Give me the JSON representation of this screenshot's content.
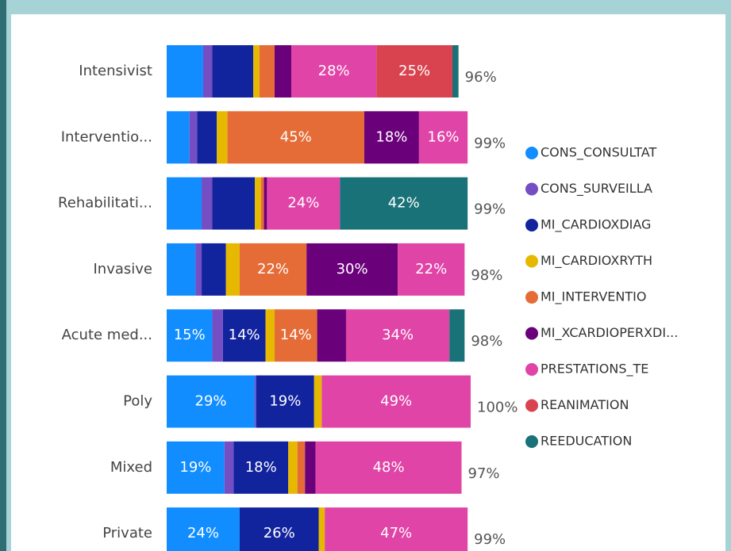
{
  "chart_data": {
    "type": "stacked_bar_horizontal",
    "categories": [
      "Intensivist",
      "Interventio...",
      "Rehabilitati...",
      "Invasive",
      "Acute med...",
      "Poly",
      "Mixed",
      "Private"
    ],
    "series": [
      {
        "name": "CONS_CONSULTAT",
        "color": "#118DFF",
        "values": [
          12,
          7.5,
          11.5,
          9.5,
          15,
          29,
          19,
          24
        ],
        "value_labels": [
          null,
          null,
          null,
          null,
          "15%",
          "29%",
          "19%",
          "24%"
        ]
      },
      {
        "name": "CONS_SURVEILLA",
        "color": "#744EC2",
        "values": [
          3,
          2.5,
          3.5,
          2,
          3.5,
          0.5,
          3,
          0
        ],
        "value_labels": [
          null,
          null,
          null,
          null,
          null,
          null,
          null,
          null
        ]
      },
      {
        "name": "MI_CARDIOXDIAG",
        "color": "#12239E",
        "values": [
          13.5,
          6.5,
          14,
          8,
          14,
          19,
          18,
          26
        ],
        "value_labels": [
          null,
          null,
          null,
          null,
          "14%",
          "19%",
          "18%",
          "26%"
        ]
      },
      {
        "name": "MI_CARDIOXRYTH",
        "color": "#E6B800",
        "values": [
          2,
          3.5,
          2,
          4.5,
          3,
          2.5,
          3,
          2
        ],
        "value_labels": [
          null,
          null,
          null,
          null,
          null,
          null,
          null,
          null
        ]
      },
      {
        "name": "MI_INTERVENTIO",
        "color": "#E66C37",
        "values": [
          5,
          45,
          1,
          22,
          14,
          0,
          2.5,
          0
        ],
        "value_labels": [
          null,
          "45%",
          null,
          "22%",
          "14%",
          null,
          null,
          null
        ]
      },
      {
        "name": "MI_XCARDIOPERXDI...",
        "color": "#6B007B",
        "values": [
          5.5,
          18,
          1,
          30,
          9.5,
          0,
          3.5,
          0
        ],
        "value_labels": [
          null,
          "18%",
          null,
          "30%",
          null,
          null,
          null,
          null
        ]
      },
      {
        "name": "PRESTATIONS_TE",
        "color": "#E044A7",
        "values": [
          28,
          16,
          24,
          22,
          34,
          49,
          48,
          47
        ],
        "value_labels": [
          "28%",
          "16%",
          "24%",
          "22%",
          "34%",
          "49%",
          "48%",
          "47%"
        ]
      },
      {
        "name": "REANIMATION",
        "color": "#D9434F",
        "values": [
          25,
          0,
          0,
          0,
          0,
          0,
          0,
          0
        ],
        "value_labels": [
          "25%",
          null,
          null,
          null,
          null,
          null,
          null,
          null
        ]
      },
      {
        "name": "REEDUCATION",
        "color": "#197278",
        "values": [
          2,
          0,
          42,
          0,
          5,
          0,
          0,
          0
        ],
        "value_labels": [
          null,
          null,
          "42%",
          null,
          null,
          null,
          null,
          null
        ]
      }
    ],
    "totals": [
      96,
      99,
      99,
      98,
      98,
      100,
      97,
      99
    ],
    "total_labels": [
      "96%",
      "99%",
      "99%",
      "98%",
      "98%",
      "100%",
      "97%",
      "99%"
    ]
  }
}
